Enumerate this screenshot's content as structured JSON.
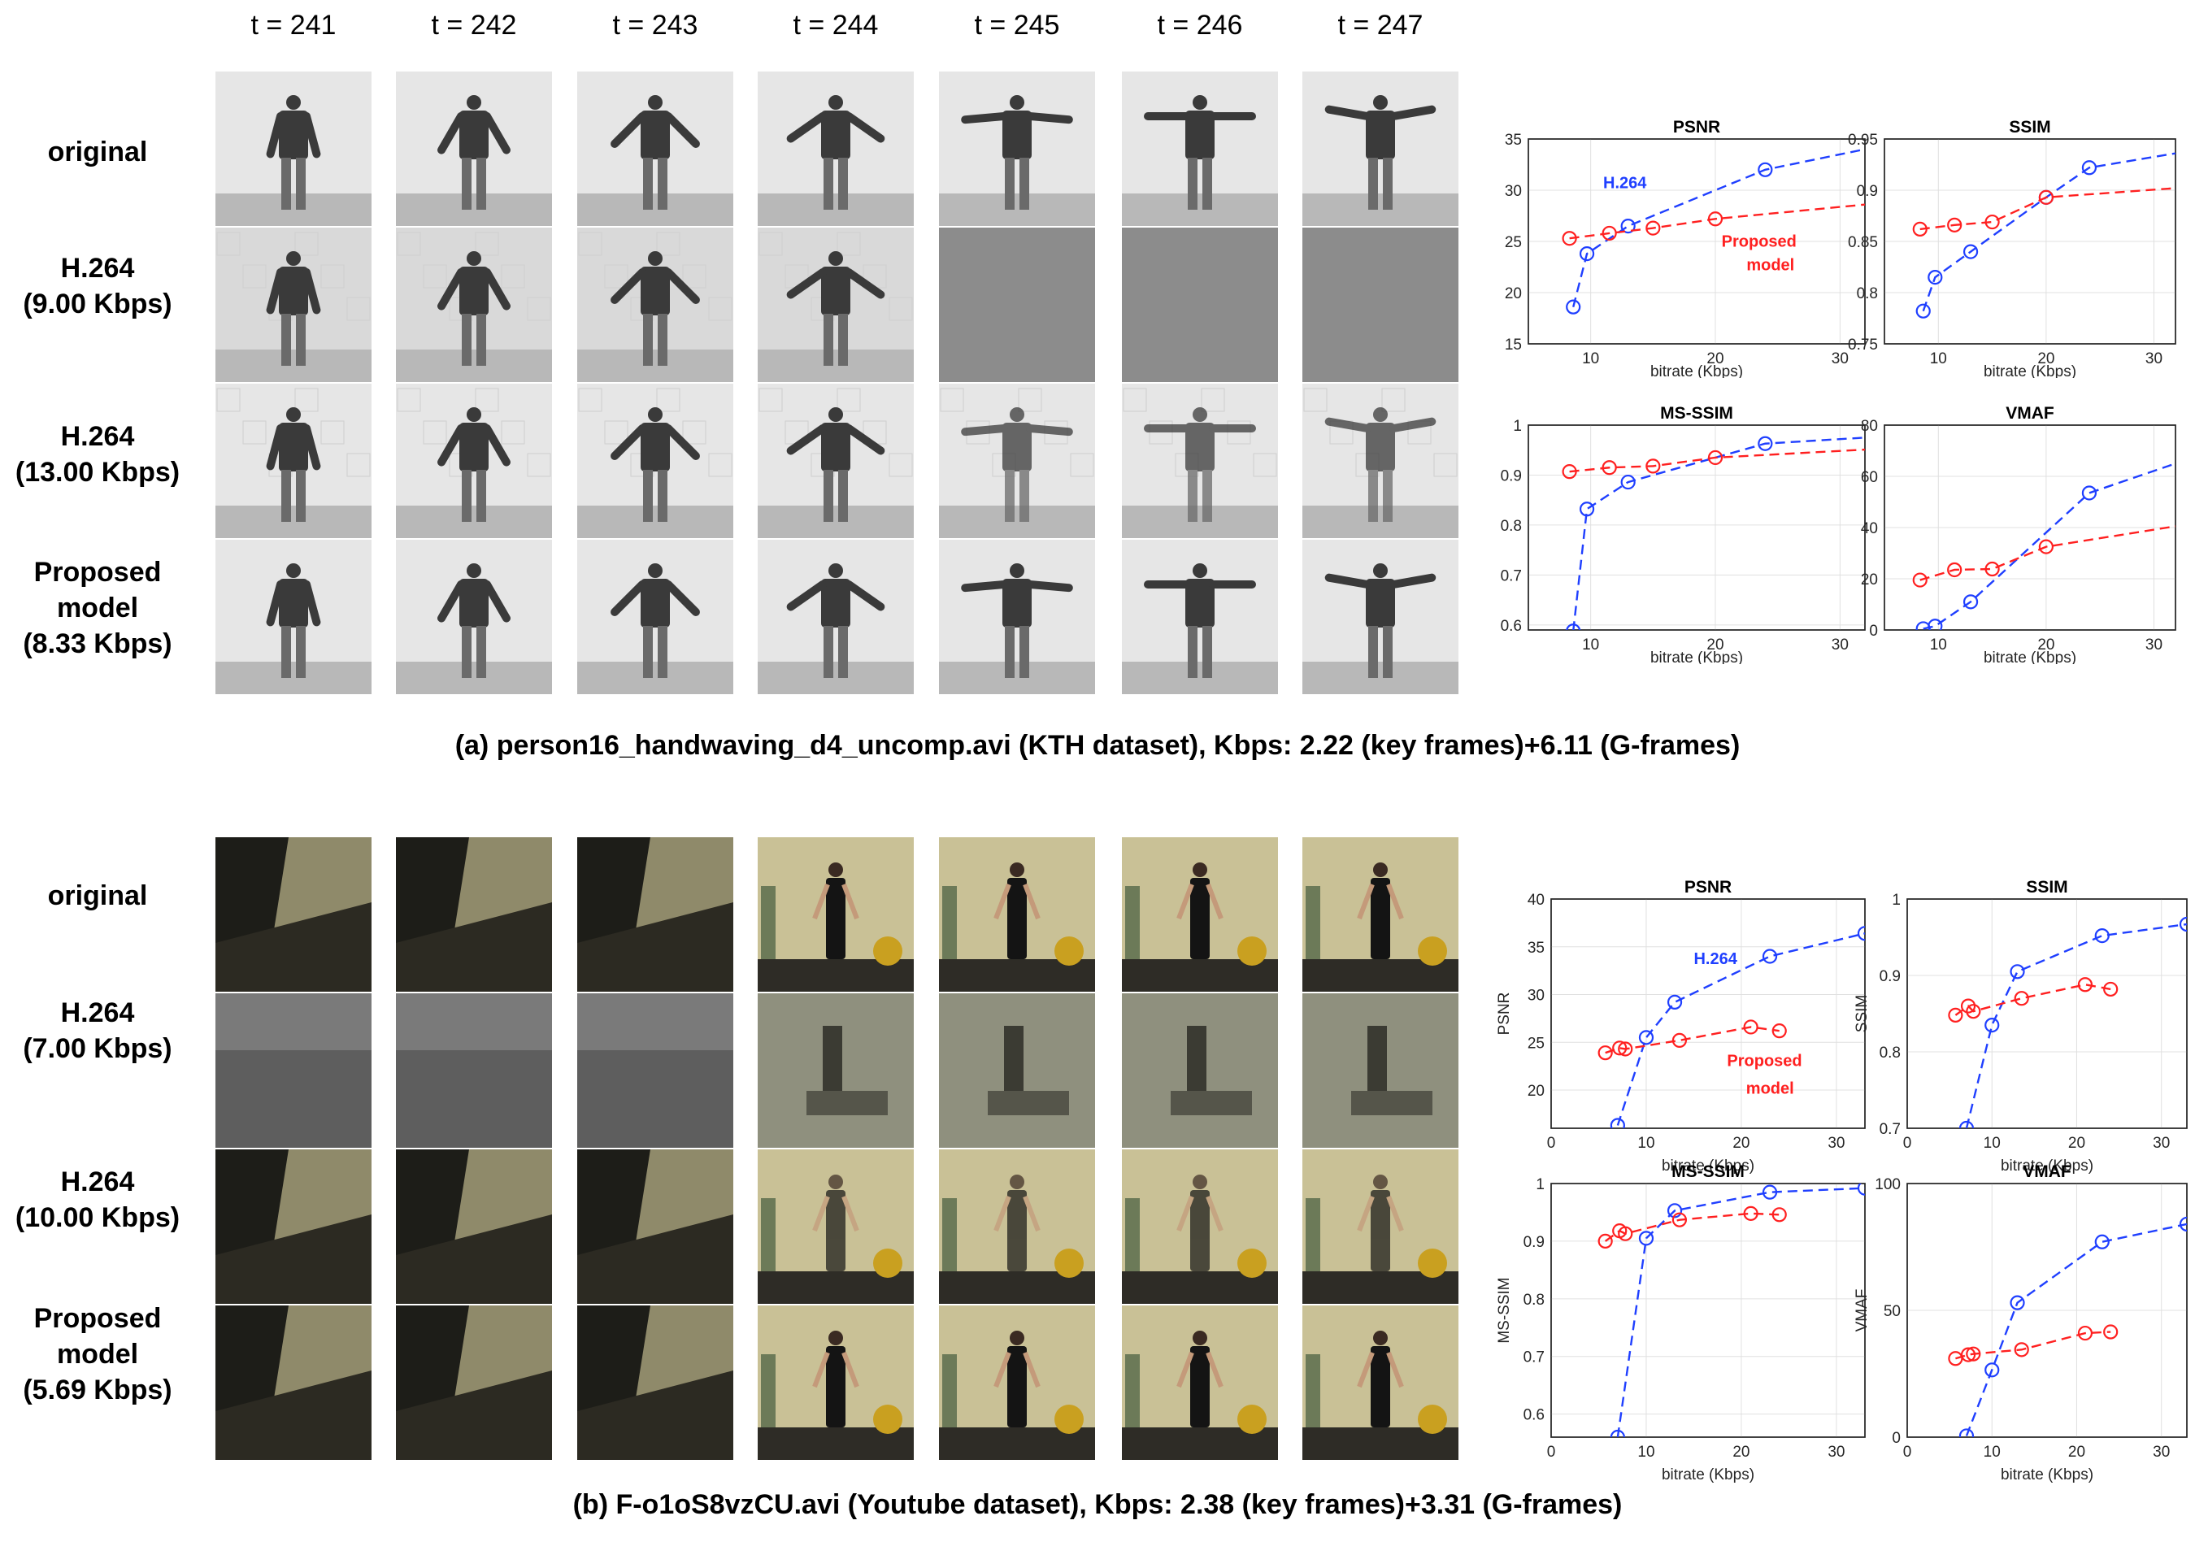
{
  "time_labels": [
    "t = 241",
    "t = 242",
    "t = 243",
    "t = 244",
    "t = 245",
    "t = 246",
    "t = 247"
  ],
  "panel_a": {
    "rows": [
      {
        "line1": "original",
        "line2": "",
        "line3": ""
      },
      {
        "line1": "H.264",
        "line2": "(9.00 Kbps)",
        "line3": ""
      },
      {
        "line1": "H.264",
        "line2": "(13.00 Kbps)",
        "line3": ""
      },
      {
        "line1": "Proposed",
        "line2": "model",
        "line3": "(8.33 Kbps)"
      }
    ],
    "caption": "(a) person16_handwaving_d4_uncomp.avi (KTH dataset), Kbps: 2.22 (key frames)+6.11 (G-frames)"
  },
  "panel_b": {
    "rows": [
      {
        "line1": "original",
        "line2": "",
        "line3": ""
      },
      {
        "line1": "H.264",
        "line2": "(7.00 Kbps)",
        "line3": ""
      },
      {
        "line1": "H.264",
        "line2": "(10.00 Kbps)",
        "line3": ""
      },
      {
        "line1": "Proposed",
        "line2": "model",
        "line3": "(5.69 Kbps)"
      }
    ],
    "caption": "(b) F-o1oS8vzCU.avi (Youtube dataset), Kbps: 2.38 (key frames)+3.31 (G-frames)"
  },
  "chart_data": [
    {
      "type": "line",
      "title": "PSNR",
      "xlabel": "bitrate (Kbps)",
      "ylabel": "",
      "xlim": [
        5,
        32
      ],
      "ylim": [
        15,
        35
      ],
      "xticks": [
        10,
        20,
        30
      ],
      "yticks": [
        15,
        20,
        25,
        30,
        35
      ],
      "grid": true,
      "series": [
        {
          "name": "H.264",
          "color": "#1f3fff",
          "x": [
            8.6,
            9.7,
            13,
            24,
            32
          ],
          "y": [
            18.6,
            23.8,
            26.5,
            32,
            34
          ],
          "markers": [
            true,
            true,
            true,
            true,
            false
          ]
        },
        {
          "name": "Proposed model",
          "color": "#ff2020",
          "x": [
            8.3,
            11.5,
            15,
            20,
            32
          ],
          "y": [
            25.3,
            25.8,
            26.3,
            27.2,
            28.6
          ],
          "markers": [
            true,
            true,
            true,
            true,
            false
          ]
        }
      ],
      "annotations": [
        {
          "text": "H.264",
          "x": 11,
          "y": 30.2,
          "color": "#1f3fff"
        },
        {
          "text": "Proposed",
          "x": 20.5,
          "y": 24.5,
          "color": "#ff2020"
        },
        {
          "text": "model",
          "x": 22.5,
          "y": 22.2,
          "color": "#ff2020"
        }
      ]
    },
    {
      "type": "line",
      "title": "SSIM",
      "xlabel": "bitrate (Kbps)",
      "ylabel": "",
      "xlim": [
        5,
        32
      ],
      "ylim": [
        0.75,
        0.95
      ],
      "xticks": [
        10,
        20,
        30
      ],
      "yticks": [
        0.75,
        0.8,
        0.85,
        0.9,
        0.95
      ],
      "grid": true,
      "series": [
        {
          "name": "H.264",
          "color": "#1f3fff",
          "x": [
            8.6,
            9.7,
            13,
            20,
            24,
            32
          ],
          "y": [
            0.782,
            0.815,
            0.84,
            0.893,
            0.922,
            0.936
          ],
          "markers": [
            true,
            true,
            true,
            true,
            true,
            false
          ]
        },
        {
          "name": "Proposed model",
          "color": "#ff2020",
          "x": [
            8.3,
            11.5,
            15,
            20,
            32
          ],
          "y": [
            0.862,
            0.866,
            0.869,
            0.893,
            0.902
          ],
          "markers": [
            true,
            true,
            true,
            true,
            false
          ]
        }
      ]
    },
    {
      "type": "line",
      "title": "MS-SSIM",
      "xlabel": "bitrate (Kbps)",
      "ylabel": "",
      "xlim": [
        5,
        32
      ],
      "ylim": [
        0.59,
        1.0
      ],
      "xticks": [
        10,
        20,
        30
      ],
      "yticks": [
        0.6,
        0.7,
        0.8,
        0.9,
        1
      ],
      "grid": true,
      "series": [
        {
          "name": "H.264",
          "color": "#1f3fff",
          "x": [
            8.6,
            9.7,
            13,
            24,
            32
          ],
          "y": [
            0.588,
            0.832,
            0.886,
            0.963,
            0.975
          ],
          "markers": [
            true,
            true,
            true,
            true,
            false
          ]
        },
        {
          "name": "Proposed model",
          "color": "#ff2020",
          "x": [
            8.3,
            11.5,
            15,
            20,
            32
          ],
          "y": [
            0.907,
            0.915,
            0.918,
            0.935,
            0.951
          ],
          "markers": [
            true,
            true,
            true,
            true,
            false
          ]
        }
      ]
    },
    {
      "type": "line",
      "title": "VMAF",
      "xlabel": "bitrate (Kbps)",
      "ylabel": "",
      "xlim": [
        5,
        32
      ],
      "ylim": [
        0,
        80
      ],
      "xticks": [
        10,
        20,
        30
      ],
      "yticks": [
        0,
        20,
        40,
        60,
        80
      ],
      "grid": true,
      "series": [
        {
          "name": "H.264",
          "color": "#1f3fff",
          "x": [
            8.6,
            9.7,
            13,
            24,
            32
          ],
          "y": [
            0.5,
            1.5,
            11,
            53.5,
            65
          ],
          "markers": [
            true,
            true,
            true,
            true,
            false
          ]
        },
        {
          "name": "Proposed model",
          "color": "#ff2020",
          "x": [
            8.3,
            11.5,
            15,
            20,
            32
          ],
          "y": [
            19.5,
            23.5,
            23.8,
            32.5,
            40.5
          ],
          "markers": [
            true,
            true,
            true,
            true,
            false
          ]
        }
      ]
    },
    {
      "type": "line",
      "title": "PSNR",
      "xlabel": "bitrate (Kbps)",
      "ylabel": "PSNR",
      "xlim": [
        0,
        33
      ],
      "ylim": [
        16,
        40
      ],
      "xticks": [
        0,
        10,
        20,
        30
      ],
      "yticks": [
        20,
        25,
        30,
        35,
        40
      ],
      "grid": true,
      "series": [
        {
          "name": "H.264",
          "color": "#1f3fff",
          "x": [
            7,
            10,
            13,
            23,
            33
          ],
          "y": [
            16.3,
            25.5,
            29.2,
            34,
            36.4
          ],
          "markers": [
            true,
            true,
            true,
            true,
            true
          ]
        },
        {
          "name": "Proposed model",
          "color": "#ff2020",
          "x": [
            5.7,
            7.2,
            7.8,
            13.5,
            21,
            24
          ],
          "y": [
            23.9,
            24.4,
            24.3,
            25.2,
            26.6,
            26.2
          ],
          "markers": [
            true,
            true,
            true,
            true,
            true,
            true
          ]
        }
      ],
      "annotations": [
        {
          "text": "H.264",
          "x": 15,
          "y": 33.2,
          "color": "#1f3fff"
        },
        {
          "text": "Proposed",
          "x": 18.5,
          "y": 22.5,
          "color": "#ff2020"
        },
        {
          "text": "model",
          "x": 20.5,
          "y": 19.6,
          "color": "#ff2020"
        }
      ]
    },
    {
      "type": "line",
      "title": "SSIM",
      "xlabel": "bitrate (Kbps)",
      "ylabel": "SSIM",
      "xlim": [
        0,
        33
      ],
      "ylim": [
        0.7,
        1.0
      ],
      "xticks": [
        0,
        10,
        20,
        30
      ],
      "yticks": [
        0.7,
        0.8,
        0.9,
        1
      ],
      "grid": true,
      "series": [
        {
          "name": "H.264",
          "color": "#1f3fff",
          "x": [
            7,
            10,
            13,
            23,
            33
          ],
          "y": [
            0.7,
            0.835,
            0.905,
            0.952,
            0.967
          ],
          "markers": [
            true,
            true,
            true,
            true,
            true
          ]
        },
        {
          "name": "Proposed model",
          "color": "#ff2020",
          "x": [
            5.7,
            7.2,
            7.8,
            13.5,
            21,
            24
          ],
          "y": [
            0.848,
            0.86,
            0.853,
            0.87,
            0.888,
            0.882
          ],
          "markers": [
            true,
            true,
            true,
            true,
            true,
            true
          ]
        }
      ]
    },
    {
      "type": "line",
      "title": "MS-SSIM",
      "xlabel": "bitrate (Kbps)",
      "ylabel": "MS-SSIM",
      "xlim": [
        0,
        33
      ],
      "ylim": [
        0.56,
        1.0
      ],
      "xticks": [
        0,
        10,
        20,
        30
      ],
      "yticks": [
        0.6,
        0.7,
        0.8,
        0.9,
        1
      ],
      "grid": true,
      "series": [
        {
          "name": "H.264",
          "color": "#1f3fff",
          "x": [
            7,
            10,
            13,
            23,
            33
          ],
          "y": [
            0.56,
            0.905,
            0.953,
            0.985,
            0.992
          ],
          "markers": [
            true,
            true,
            true,
            true,
            true
          ]
        },
        {
          "name": "Proposed model",
          "color": "#ff2020",
          "x": [
            5.7,
            7.2,
            7.8,
            13.5,
            21,
            24
          ],
          "y": [
            0.9,
            0.918,
            0.913,
            0.937,
            0.948,
            0.946
          ],
          "markers": [
            true,
            true,
            true,
            true,
            true,
            true
          ]
        }
      ]
    },
    {
      "type": "line",
      "title": "VMAF",
      "xlabel": "bitrate (Kbps)",
      "ylabel": "VMAF",
      "xlim": [
        0,
        33
      ],
      "ylim": [
        0,
        100
      ],
      "xticks": [
        0,
        10,
        20,
        30
      ],
      "yticks": [
        0,
        50,
        100
      ],
      "grid": true,
      "series": [
        {
          "name": "H.264",
          "color": "#1f3fff",
          "x": [
            7,
            10,
            13,
            23,
            33
          ],
          "y": [
            0.5,
            26.5,
            53,
            77,
            84
          ],
          "markers": [
            true,
            true,
            true,
            true,
            true
          ]
        },
        {
          "name": "Proposed model",
          "color": "#ff2020",
          "x": [
            5.7,
            7.2,
            7.8,
            13.5,
            21,
            24
          ],
          "y": [
            31,
            32.5,
            32.8,
            34.5,
            41,
            41.5
          ],
          "markers": [
            true,
            true,
            true,
            true,
            true,
            true
          ]
        }
      ]
    }
  ]
}
